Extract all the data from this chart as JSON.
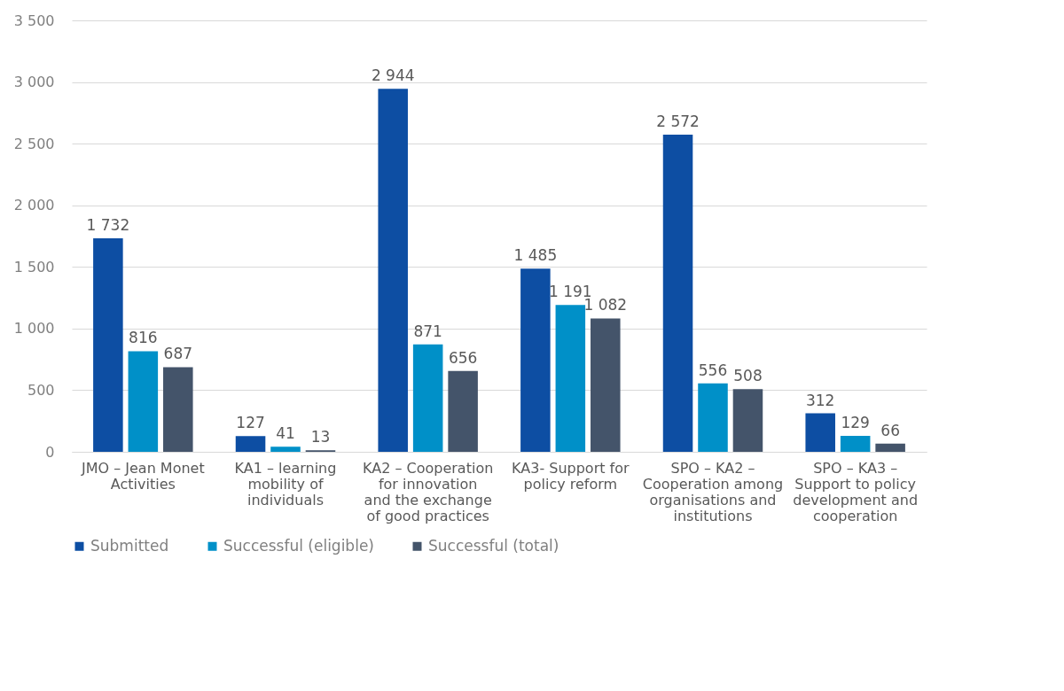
{
  "chart_data": {
    "type": "bar",
    "categories": [
      "JMO – Jean Monet Activities",
      "KA1 – learning mobility of individuals",
      "KA2 – Cooperation for innovation and the exchange of good practices",
      "KA3- Support for policy reform",
      "SPO – KA2 – Cooperation among organisations and institutions",
      "SPO – KA3 – Support to policy development and cooperation"
    ],
    "series": [
      {
        "name": "Submitted",
        "color": "#0d4ea3",
        "values": [
          1732,
          127,
          2944,
          1485,
          2572,
          312
        ],
        "value_labels": [
          "1 732",
          "127",
          "2 944",
          "1 485",
          "2 572",
          "312"
        ]
      },
      {
        "name": "Successful (eligible)",
        "color": "#0090c8",
        "values": [
          816,
          41,
          871,
          1191,
          556,
          129
        ],
        "value_labels": [
          "816",
          "41",
          "871",
          "1 191",
          "556",
          "129"
        ]
      },
      {
        "name": "Successful (total)",
        "color": "#44546a",
        "values": [
          687,
          13,
          656,
          1082,
          508,
          66
        ],
        "value_labels": [
          "687",
          "13",
          "656",
          "1 082",
          "508",
          "66"
        ]
      }
    ],
    "ylim": [
      0,
      3500
    ],
    "yticks": [
      {
        "value": 0,
        "label": "0"
      },
      {
        "value": 500,
        "label": "500"
      },
      {
        "value": 1000,
        "label": "1 000"
      },
      {
        "value": 1500,
        "label": "1 500"
      },
      {
        "value": 2000,
        "label": "2 000"
      },
      {
        "value": 2500,
        "label": "2 500"
      },
      {
        "value": 3000,
        "label": "3 000"
      },
      {
        "value": 3500,
        "label": "3 500"
      }
    ],
    "grid": "y",
    "legend": "bottom"
  }
}
